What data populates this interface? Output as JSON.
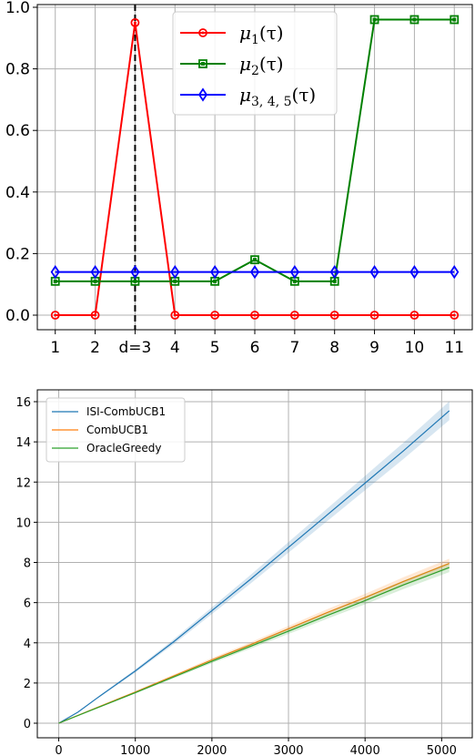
{
  "chart_data": [
    {
      "type": "line",
      "x": [
        1,
        2,
        3,
        4,
        5,
        6,
        7,
        8,
        9,
        10,
        11
      ],
      "xticklabels": [
        "1",
        "2",
        "d=3",
        "4",
        "5",
        "6",
        "7",
        "8",
        "9",
        "10",
        "11"
      ],
      "ylim": [
        0,
        1.0
      ],
      "yticks": [
        0.0,
        0.2,
        0.4,
        0.6,
        0.8,
        1.0
      ],
      "yticklabels": [
        "0.0",
        "0.2",
        "0.4",
        "0.6",
        "0.8",
        "1.0"
      ],
      "grid": true,
      "legend_position": "top-right",
      "annotations": [
        {
          "type": "vertical-dashed-line",
          "x": 3
        }
      ],
      "series": [
        {
          "name_main": "μ",
          "name_sub": "1",
          "name_arg": "(τ)",
          "color": "#ff0000",
          "marker": "circle",
          "values": [
            0,
            0,
            0.95,
            0,
            0,
            0,
            0,
            0,
            0,
            0,
            0
          ]
        },
        {
          "name_main": "μ",
          "name_sub": "2",
          "name_arg": "(τ)",
          "color": "#008000",
          "marker": "square",
          "values": [
            0.11,
            0.11,
            0.11,
            0.11,
            0.11,
            0.18,
            0.11,
            0.11,
            0.96,
            0.96,
            0.96
          ]
        },
        {
          "name_main": "μ",
          "name_sub": "3, 4, 5",
          "name_arg": "(τ)",
          "color": "#0000ff",
          "marker": "diamond",
          "values": [
            0.14,
            0.14,
            0.14,
            0.14,
            0.14,
            0.14,
            0.14,
            0.14,
            0.14,
            0.14,
            0.14
          ]
        }
      ]
    },
    {
      "type": "line",
      "xlim": [
        0,
        5100
      ],
      "xticks": [
        0,
        1000,
        2000,
        3000,
        4000,
        5000
      ],
      "xticklabels": [
        "0",
        "1000",
        "2000",
        "3000",
        "4000",
        "5000"
      ],
      "ylim": [
        0,
        16
      ],
      "yticks": [
        0,
        2,
        4,
        6,
        8,
        10,
        12,
        14,
        16
      ],
      "yticklabels": [
        "0",
        "2",
        "4",
        "6",
        "8",
        "10",
        "12",
        "14",
        "16"
      ],
      "grid": true,
      "legend_position": "top-left",
      "series": [
        {
          "name": "ISI-CombUCB1",
          "color": "#1f77b4",
          "x": [
            0,
            250,
            500,
            1000,
            1500,
            2000,
            2500,
            3000,
            3500,
            4000,
            4500,
            5100
          ],
          "values": [
            0,
            0.55,
            1.25,
            2.6,
            4.05,
            5.6,
            7.15,
            8.75,
            10.35,
            11.95,
            13.55,
            15.55
          ]
        },
        {
          "name": "CombUCB1",
          "color": "#ff7f0e",
          "x": [
            0,
            500,
            1000,
            1500,
            2000,
            2500,
            3000,
            3500,
            4000,
            4500,
            5100
          ],
          "values": [
            0,
            0.78,
            1.55,
            2.35,
            3.15,
            3.9,
            4.7,
            5.5,
            6.25,
            7.05,
            7.95
          ]
        },
        {
          "name": "OracleGreedy",
          "color": "#2ca02c",
          "x": [
            0,
            500,
            1000,
            1500,
            2000,
            2500,
            3000,
            3500,
            4000,
            4500,
            5100
          ],
          "values": [
            0,
            0.76,
            1.52,
            2.3,
            3.08,
            3.82,
            4.58,
            5.35,
            6.1,
            6.88,
            7.75
          ]
        }
      ]
    }
  ]
}
